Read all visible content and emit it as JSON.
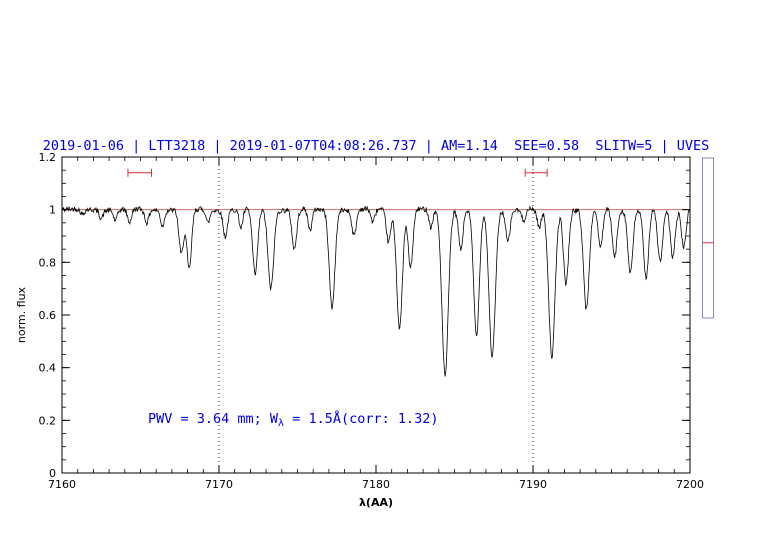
{
  "title": "2019-01-06 | LTT3218 | 2019-01-07T04:08:26.737 | AM=1.14  SEE=0.58  SLITW=5 | UVES",
  "annotation": {
    "pre": "PWV = 3.64 mm; W",
    "sub": "λ",
    "post": " = 1.5Å(corr: 1.32)"
  },
  "colors": {
    "accent_blue": "#0000dd",
    "continuum_red": "#cc5555",
    "marker_red": "#cc3333",
    "gauge_outline": "#8888cc",
    "spectrum_black": "#000000"
  },
  "axes": {
    "xlabel": "λ(AA)",
    "ylabel": "norm. flux",
    "xmin": 7160,
    "xmax": 7200,
    "ymin": 0,
    "ymax": 1.2,
    "xticks": {
      "values": [
        7160,
        7170,
        7180,
        7190,
        7200
      ],
      "labels": [
        "7160",
        "7170",
        "7180",
        "7190",
        "7200"
      ]
    },
    "yticks": {
      "values": [
        0,
        0.2,
        0.4,
        0.6,
        0.8,
        1,
        1.2
      ],
      "labels": [
        "0",
        "0.2",
        "0.4",
        "0.6",
        "0.8",
        "1",
        "1.2"
      ]
    },
    "x_minor_step": 1,
    "y_minor_step": 0.05
  },
  "chart_data": {
    "type": "line",
    "title": "2019-01-06 | LTT3218 | 2019-01-07T04:08:26.737 | AM=1.14  SEE=0.58  SLITW=5 | UVES",
    "xlabel": "λ(AA)",
    "ylabel": "norm. flux",
    "xlim": [
      7160,
      7200
    ],
    "ylim": [
      0,
      1.2
    ],
    "grid": false,
    "continuum_level": 1.0,
    "dotted_guides_x": [
      7170,
      7190
    ],
    "noise_amplitude": 0.01,
    "seed": 42,
    "absorption_lines": [
      [
        7161.3,
        0.02,
        0.12
      ],
      [
        7162.5,
        0.03,
        0.12
      ],
      [
        7163.4,
        0.04,
        0.12
      ],
      [
        7164.3,
        0.05,
        0.13
      ],
      [
        7165.4,
        0.05,
        0.13
      ],
      [
        7166.4,
        0.06,
        0.12
      ],
      [
        7167.6,
        0.17,
        0.15
      ],
      [
        7168.1,
        0.23,
        0.15
      ],
      [
        7169.3,
        0.05,
        0.12
      ],
      [
        7170.4,
        0.1,
        0.14
      ],
      [
        7171.4,
        0.07,
        0.12
      ],
      [
        7172.3,
        0.25,
        0.16
      ],
      [
        7173.3,
        0.3,
        0.18
      ],
      [
        7174.8,
        0.15,
        0.15
      ],
      [
        7175.8,
        0.08,
        0.13
      ],
      [
        7177.2,
        0.37,
        0.18
      ],
      [
        7178.6,
        0.1,
        0.14
      ],
      [
        7179.8,
        0.05,
        0.12
      ],
      [
        7180.8,
        0.12,
        0.14
      ],
      [
        7181.5,
        0.45,
        0.18
      ],
      [
        7182.2,
        0.22,
        0.15
      ],
      [
        7183.5,
        0.07,
        0.12
      ],
      [
        7184.4,
        0.63,
        0.2
      ],
      [
        7185.4,
        0.15,
        0.14
      ],
      [
        7186.4,
        0.48,
        0.18
      ],
      [
        7187.4,
        0.56,
        0.2
      ],
      [
        7188.4,
        0.12,
        0.14
      ],
      [
        7189.4,
        0.04,
        0.12
      ],
      [
        7190.4,
        0.07,
        0.13
      ],
      [
        7191.2,
        0.56,
        0.2
      ],
      [
        7192.1,
        0.28,
        0.16
      ],
      [
        7193.4,
        0.38,
        0.18
      ],
      [
        7194.3,
        0.15,
        0.14
      ],
      [
        7195.2,
        0.18,
        0.15
      ],
      [
        7196.2,
        0.24,
        0.16
      ],
      [
        7197.2,
        0.26,
        0.16
      ],
      [
        7198.1,
        0.2,
        0.16
      ],
      [
        7198.9,
        0.18,
        0.15
      ],
      [
        7199.6,
        0.14,
        0.14
      ]
    ],
    "interval_markers": [
      {
        "x1": 7164.2,
        "x2": 7165.7,
        "y": 1.14
      },
      {
        "x1": 7189.5,
        "x2": 7190.9,
        "y": 1.14
      }
    ],
    "side_gauge": {
      "mark_fraction": 0.53
    }
  }
}
